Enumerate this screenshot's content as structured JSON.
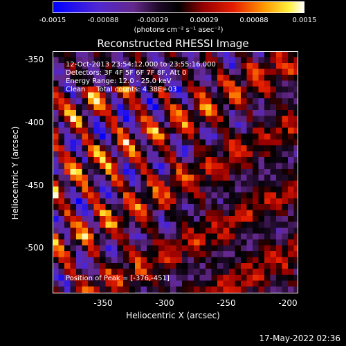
{
  "colorbar": {
    "ticks": [
      "-0.0015",
      "-0.00088",
      "-0.00029",
      "0.00029",
      "0.00088",
      "0.0015"
    ],
    "label": "(photons cm⁻² s⁻¹ asec⁻²)"
  },
  "plot": {
    "title": "Reconstructed RHESSI Image",
    "annotations": [
      "12-Oct-2013 23:54:12.000 to 23:55:16.000",
      "Detectors: 3F 4F 5F 6F 7F 8F, Att 0",
      "Energy Range: 12.0 - 25.0 keV",
      "Clean     Total counts: 4.38E+03"
    ],
    "peak_label": "Position of Peak = [-376,-451]",
    "x_axis": {
      "label": "Heliocentric X (arcsec)",
      "ticks": [
        "-350",
        "-300",
        "-250",
        "-200"
      ],
      "range": [
        -390,
        -197
      ]
    },
    "y_axis": {
      "label": "Heliocentric Y (arcsec)",
      "ticks": [
        "-350",
        "-400",
        "-450",
        "-500"
      ],
      "range": [
        -537,
        -343
      ]
    }
  },
  "timestamp": "17-May-2022 02:36"
}
